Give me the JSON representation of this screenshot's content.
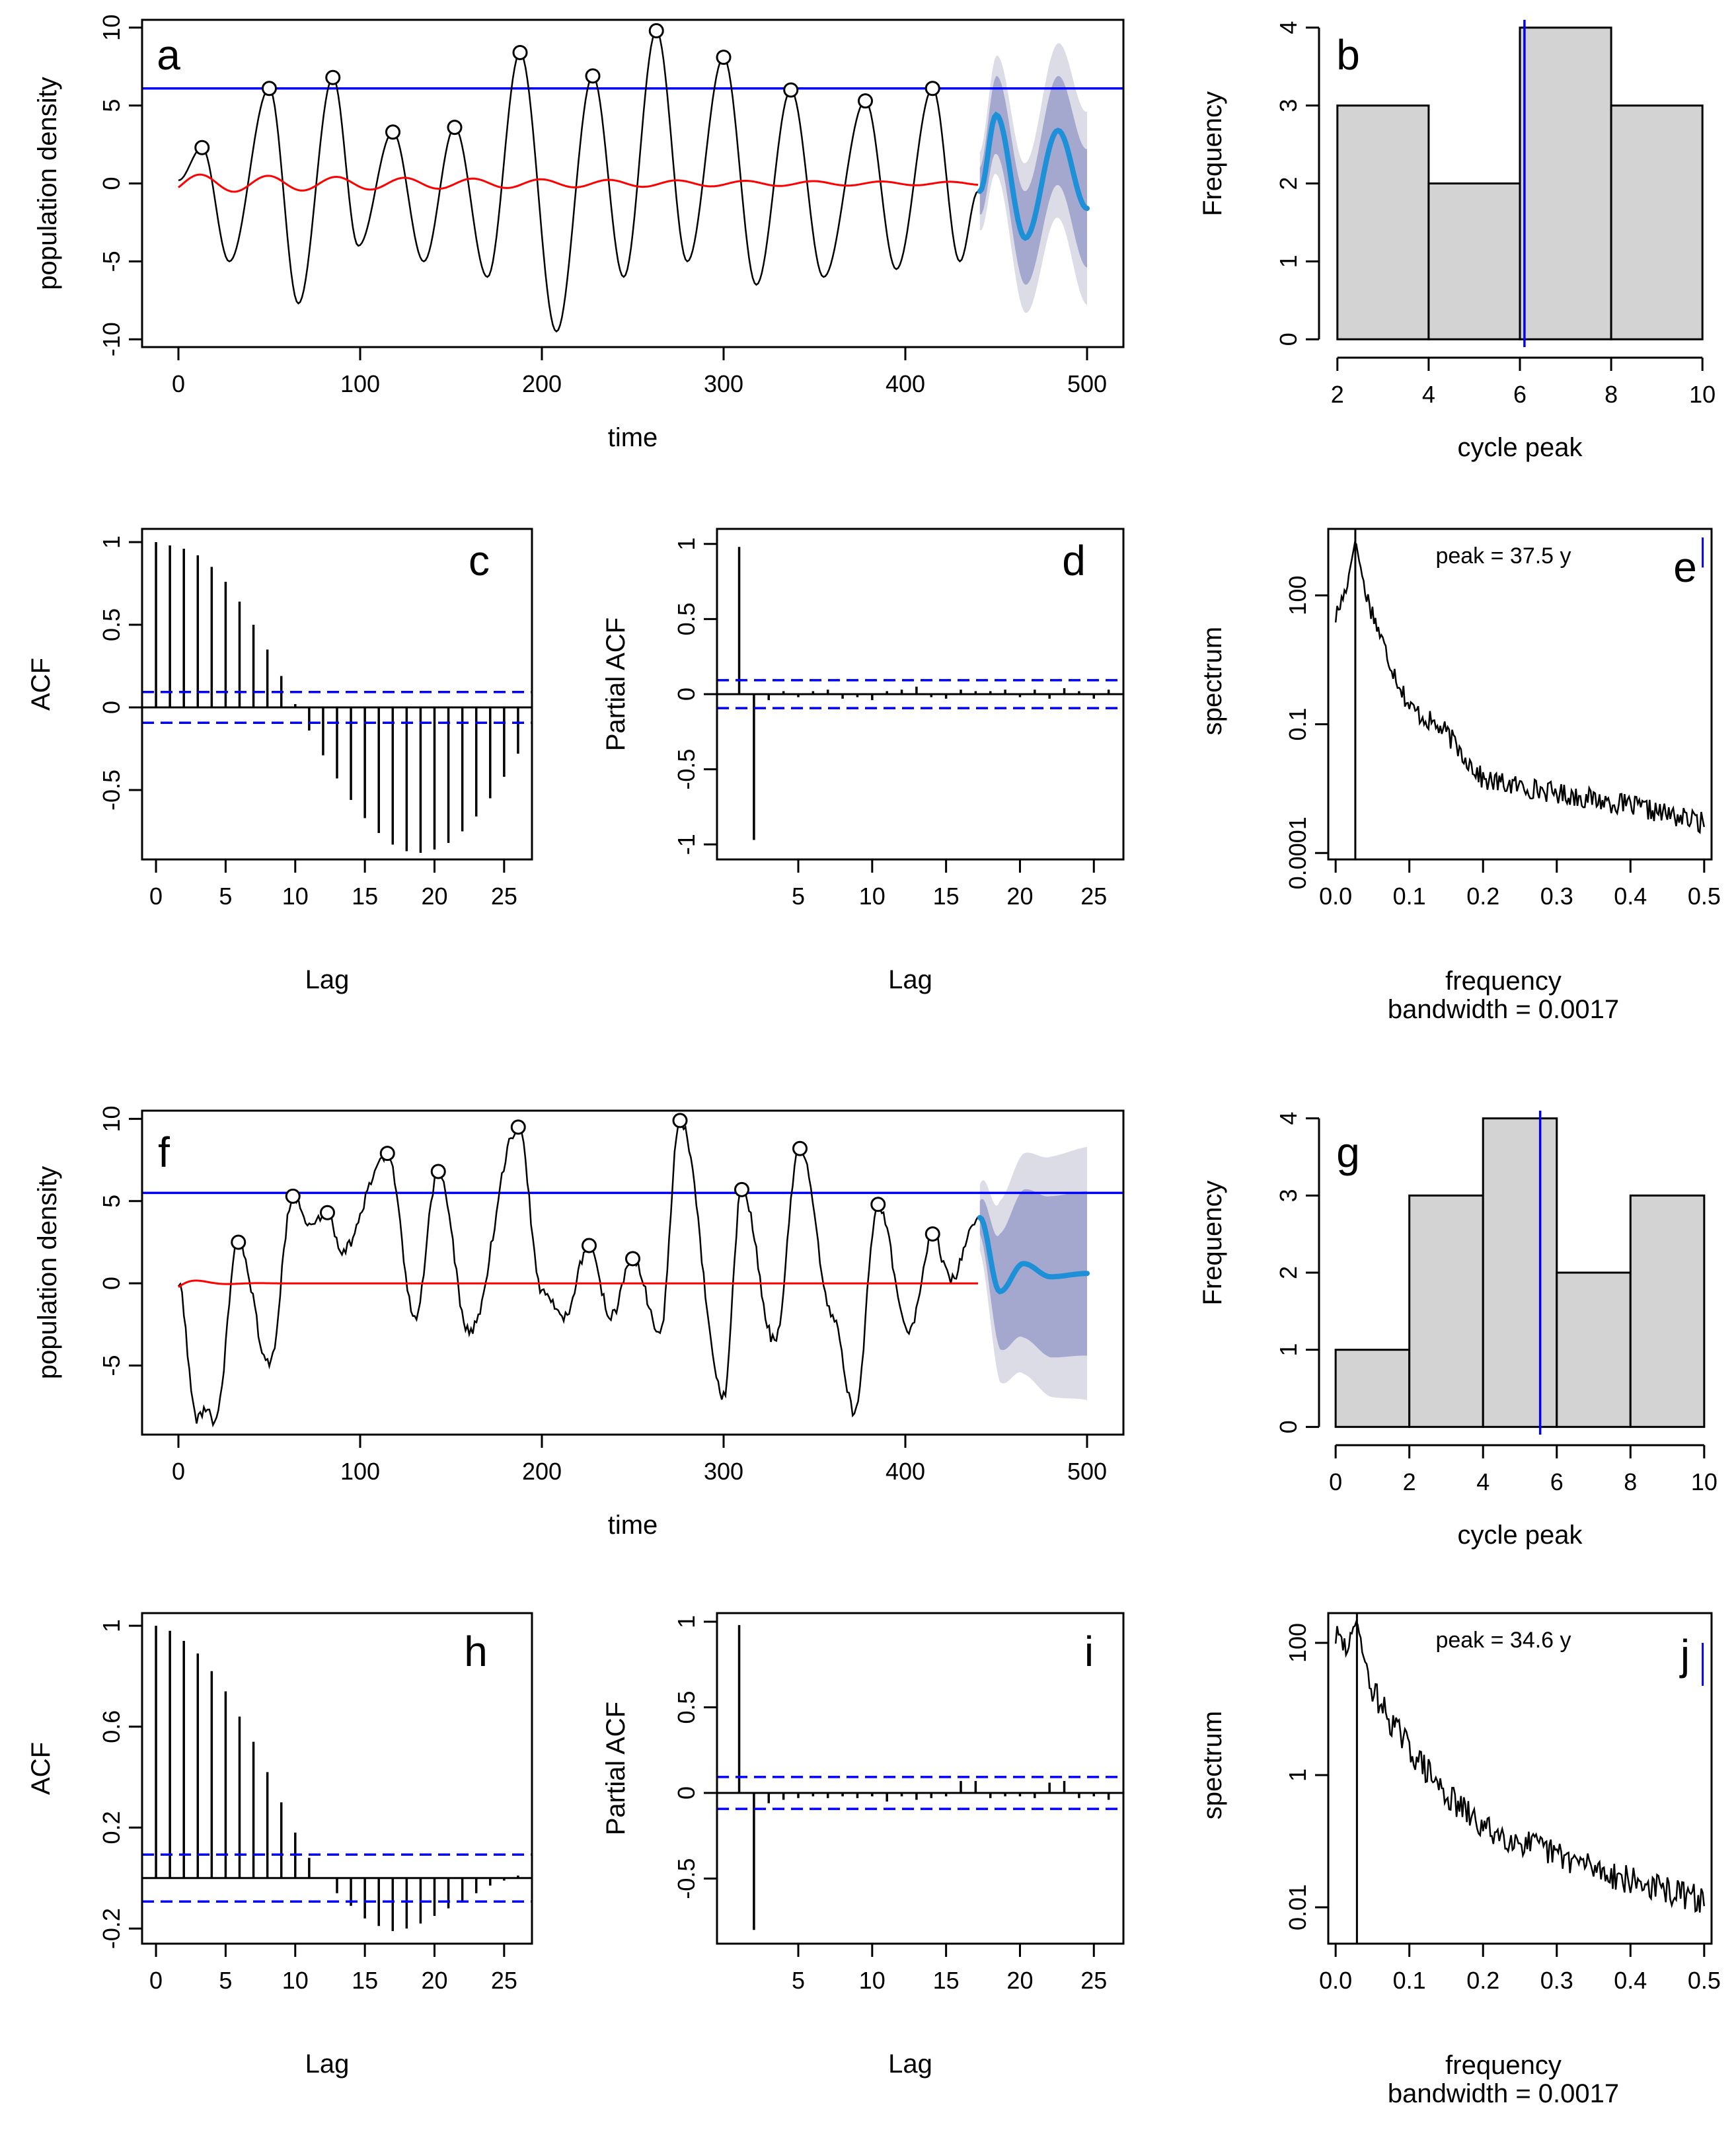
{
  "colors": {
    "series": "#000000",
    "threshold": "#0000ff",
    "trend": "#ff0000",
    "forecast": "#1e90d8",
    "band_outer": "#dcdce6",
    "band_inner": "#a4a8ce",
    "hist_fill": "#d3d3d3",
    "ci": "#0000ff"
  },
  "chart_data": [
    {
      "id": "a",
      "type": "line",
      "panel_label": "a",
      "xlabel": "time",
      "ylabel": "population density",
      "xlim": [
        -20,
        520
      ],
      "ylim": [
        -10.5,
        10.5
      ],
      "xticks": [
        0,
        100,
        200,
        300,
        400,
        500
      ],
      "yticks": [
        -10,
        -5,
        0,
        5,
        10
      ],
      "threshold": 6.1,
      "noise": 0.0,
      "series_extrema": [
        [
          0,
          0.2
        ],
        [
          13,
          2.3
        ],
        [
          28,
          -5.0
        ],
        [
          50,
          6.1
        ],
        [
          66,
          -7.7
        ],
        [
          85,
          6.8
        ],
        [
          99,
          -4.0
        ],
        [
          118,
          3.3
        ],
        [
          135,
          -5.0
        ],
        [
          152,
          3.6
        ],
        [
          170,
          -6.0
        ],
        [
          188,
          8.4
        ],
        [
          208,
          -9.5
        ],
        [
          228,
          6.9
        ],
        [
          245,
          -6.0
        ],
        [
          263,
          9.8
        ],
        [
          280,
          -5.0
        ],
        [
          300,
          8.1
        ],
        [
          318,
          -6.5
        ],
        [
          337,
          6.0
        ],
        [
          355,
          -6.0
        ],
        [
          378,
          5.3
        ],
        [
          395,
          -5.5
        ],
        [
          415,
          6.1
        ],
        [
          430,
          -5.0
        ],
        [
          440,
          -0.5
        ]
      ],
      "peaks": [
        [
          13,
          2.3
        ],
        [
          50,
          6.1
        ],
        [
          85,
          6.8
        ],
        [
          118,
          3.3
        ],
        [
          152,
          3.6
        ],
        [
          188,
          8.4
        ],
        [
          228,
          6.9
        ],
        [
          263,
          9.8
        ],
        [
          300,
          8.1
        ],
        [
          337,
          6.0
        ],
        [
          378,
          5.3
        ],
        [
          415,
          6.1
        ]
      ],
      "trend": {
        "x0": 0,
        "x1": 440,
        "amp": 0.6,
        "decay": 0.004,
        "period": 37.5
      },
      "forecast": {
        "x": [
          441,
          450,
          466,
          484,
          500
        ],
        "y": [
          -0.5,
          4.4,
          -3.5,
          3.4,
          -1.6
        ]
      },
      "band_inner_half": [
        1.5,
        2.5,
        3.0,
        3.5,
        3.8
      ],
      "band_outer_half": [
        2.5,
        3.8,
        4.8,
        5.6,
        6.2
      ]
    },
    {
      "id": "b",
      "type": "bar",
      "panel_label": "b",
      "xlabel": "cycle peak",
      "ylabel": "Frequency",
      "breaks": [
        2,
        4,
        6,
        8,
        10
      ],
      "values": [
        3,
        2,
        4,
        3
      ],
      "xlim": [
        1.8,
        10.2
      ],
      "ylim": [
        -0.1,
        4.1
      ],
      "xticks": [
        2,
        4,
        6,
        8,
        10
      ],
      "yticks": [
        0,
        1,
        2,
        3,
        4
      ],
      "vline": 6.1
    },
    {
      "id": "c",
      "type": "bar",
      "panel_label": "c",
      "xlabel": "Lag",
      "ylabel": "ACF",
      "lags": [
        0,
        1,
        2,
        3,
        4,
        5,
        6,
        7,
        8,
        9,
        10,
        11,
        12,
        13,
        14,
        15,
        16,
        17,
        18,
        19,
        20,
        21,
        22,
        23,
        24,
        25,
        26
      ],
      "values": [
        1.0,
        0.98,
        0.96,
        0.92,
        0.85,
        0.76,
        0.64,
        0.5,
        0.35,
        0.19,
        0.02,
        -0.14,
        -0.29,
        -0.43,
        -0.56,
        -0.67,
        -0.76,
        -0.83,
        -0.87,
        -0.88,
        -0.86,
        -0.82,
        -0.75,
        -0.66,
        -0.55,
        -0.42,
        -0.28
      ],
      "ci": 0.093,
      "xlim": [
        -1,
        27
      ],
      "ylim": [
        -0.92,
        1.08
      ],
      "xticks": [
        0,
        5,
        10,
        15,
        20,
        25
      ],
      "yticks": [
        -0.5,
        0.0,
        0.5,
        1.0
      ]
    },
    {
      "id": "d",
      "type": "bar",
      "panel_label": "d",
      "xlabel": "Lag",
      "ylabel": "Partial ACF",
      "lags": [
        1,
        2,
        3,
        4,
        5,
        6,
        7,
        8,
        9,
        10,
        11,
        12,
        13,
        14,
        15,
        16,
        17,
        18,
        19,
        20,
        21,
        22,
        23,
        24,
        25,
        26
      ],
      "values": [
        0.98,
        -0.97,
        -0.04,
        0.02,
        -0.02,
        0.02,
        0.03,
        -0.03,
        -0.02,
        -0.04,
        0.02,
        0.03,
        0.05,
        -0.02,
        -0.03,
        0.03,
        0.02,
        0.02,
        0.03,
        -0.02,
        0.03,
        -0.03,
        0.04,
        0.02,
        -0.03,
        0.03
      ],
      "ci": 0.093,
      "xlim": [
        -0.5,
        27
      ],
      "ylim": [
        -1.1,
        1.1
      ],
      "xticks": [
        5,
        10,
        15,
        20,
        25
      ],
      "yticks": [
        -1.0,
        -0.5,
        0.0,
        0.5,
        1.0
      ]
    },
    {
      "id": "e",
      "type": "line",
      "panel_label": "e",
      "xlabel": "frequency",
      "xlabel2": "bandwidth = 0.0017",
      "ylabel": "spectrum",
      "log": true,
      "ylim_log10": [
        -4.15,
        3.55
      ],
      "xlim": [
        -0.01,
        0.51
      ],
      "xticks": [
        0.0,
        0.1,
        0.2,
        0.3,
        0.4,
        0.5
      ],
      "xticklabels": [
        "0.0",
        "0.1",
        "0.2",
        "0.3",
        "0.4",
        "0.5"
      ],
      "yticks_log10": [
        2,
        -1,
        -4
      ],
      "yticklabels": [
        "100",
        "0.1",
        "0.0001"
      ],
      "peak_freq": 0.0267,
      "peak_label": "peak = 37.5 y",
      "anchors": [
        [
          0.0,
          1.5
        ],
        [
          0.015,
          2.2
        ],
        [
          0.0267,
          3.3
        ],
        [
          0.04,
          2.1
        ],
        [
          0.07,
          0.6
        ],
        [
          0.1,
          -0.6
        ],
        [
          0.15,
          -1.2
        ],
        [
          0.2,
          -2.3
        ],
        [
          0.3,
          -2.6
        ],
        [
          0.4,
          -2.9
        ],
        [
          0.5,
          -3.3
        ]
      ],
      "noise": 0.25,
      "seed": 17,
      "ci_bar_log10": [
        2.65,
        3.35
      ],
      "ci_bar_x": 0.498
    },
    {
      "id": "f",
      "type": "line",
      "panel_label": "f",
      "xlabel": "time",
      "ylabel": "population density",
      "xlim": [
        -20,
        520
      ],
      "ylim": [
        -9.2,
        10.5
      ],
      "xticks": [
        0,
        100,
        200,
        300,
        400,
        500
      ],
      "yticks": [
        -5,
        0,
        5,
        10
      ],
      "threshold": 5.5,
      "noise": 0.35,
      "series_extrema": [
        [
          0,
          0.0
        ],
        [
          10,
          -8.2
        ],
        [
          15,
          -7.6
        ],
        [
          20,
          -8.6
        ],
        [
          33,
          2.5
        ],
        [
          50,
          -5.0
        ],
        [
          63,
          5.3
        ],
        [
          72,
          3.5
        ],
        [
          82,
          4.3
        ],
        [
          90,
          2.0
        ],
        [
          115,
          7.9
        ],
        [
          130,
          -2.0
        ],
        [
          143,
          6.8
        ],
        [
          160,
          -3.0
        ],
        [
          187,
          9.5
        ],
        [
          200,
          -0.5
        ],
        [
          212,
          -2.0
        ],
        [
          226,
          2.3
        ],
        [
          238,
          -2.0
        ],
        [
          250,
          1.5
        ],
        [
          265,
          -3.0
        ],
        [
          276,
          9.9
        ],
        [
          300,
          -6.9
        ],
        [
          310,
          5.7
        ],
        [
          328,
          -3.5
        ],
        [
          342,
          8.2
        ],
        [
          360,
          -2.0
        ],
        [
          372,
          -7.8
        ],
        [
          385,
          4.8
        ],
        [
          402,
          -3.0
        ],
        [
          415,
          3.0
        ],
        [
          425,
          0.2
        ],
        [
          440,
          4.0
        ]
      ],
      "peaks": [
        [
          33,
          2.5
        ],
        [
          63,
          5.3
        ],
        [
          82,
          4.3
        ],
        [
          115,
          7.9
        ],
        [
          143,
          6.8
        ],
        [
          187,
          9.5
        ],
        [
          226,
          2.3
        ],
        [
          250,
          1.5
        ],
        [
          276,
          9.9
        ],
        [
          310,
          5.7
        ],
        [
          342,
          8.2
        ],
        [
          385,
          4.8
        ],
        [
          415,
          3.0
        ]
      ],
      "trend": {
        "x0": 0,
        "x1": 440,
        "amp": 0.4,
        "decay": 0.08,
        "period": 34.6
      },
      "forecast": {
        "x": [
          441,
          452,
          465,
          480,
          500
        ],
        "y": [
          4.0,
          -0.5,
          1.2,
          0.4,
          0.6
        ]
      },
      "band_inner_half": [
        1.0,
        3.5,
        4.5,
        4.9,
        5.0
      ],
      "band_outer_half": [
        2.0,
        5.5,
        6.7,
        7.3,
        7.7
      ]
    },
    {
      "id": "g",
      "type": "bar",
      "panel_label": "g",
      "xlabel": "cycle peak",
      "ylabel": "Frequency",
      "breaks": [
        0,
        2,
        4,
        6,
        8,
        10
      ],
      "values": [
        1,
        3,
        4,
        2,
        3
      ],
      "xlim": [
        -0.2,
        10.2
      ],
      "ylim": [
        -0.1,
        4.1
      ],
      "xticks": [
        0,
        2,
        4,
        6,
        8,
        10
      ],
      "yticks": [
        0,
        1,
        2,
        3,
        4
      ],
      "vline": 5.55
    },
    {
      "id": "h",
      "type": "bar",
      "panel_label": "h",
      "xlabel": "Lag",
      "ylabel": "ACF",
      "lags": [
        0,
        1,
        2,
        3,
        4,
        5,
        6,
        7,
        8,
        9,
        10,
        11,
        12,
        13,
        14,
        15,
        16,
        17,
        18,
        19,
        20,
        21,
        22,
        23,
        24,
        25,
        26
      ],
      "values": [
        1.0,
        0.98,
        0.94,
        0.89,
        0.82,
        0.74,
        0.64,
        0.54,
        0.42,
        0.3,
        0.18,
        0.08,
        0.0,
        -0.06,
        -0.11,
        -0.16,
        -0.19,
        -0.21,
        -0.2,
        -0.18,
        -0.15,
        -0.12,
        -0.09,
        -0.06,
        -0.03,
        -0.01,
        0.01
      ],
      "ci": 0.093,
      "xlim": [
        -1,
        27
      ],
      "ylim": [
        -0.26,
        1.05
      ],
      "xticks": [
        0,
        5,
        10,
        15,
        20,
        25
      ],
      "yticks": [
        -0.2,
        0.2,
        0.6,
        1.0
      ]
    },
    {
      "id": "i",
      "type": "bar",
      "panel_label": "i",
      "xlabel": "Lag",
      "ylabel": "Partial ACF",
      "lags": [
        1,
        2,
        3,
        4,
        5,
        6,
        7,
        8,
        9,
        10,
        11,
        12,
        13,
        14,
        15,
        16,
        17,
        18,
        19,
        20,
        21,
        22,
        23,
        24,
        25,
        26
      ],
      "values": [
        0.98,
        -0.8,
        -0.06,
        -0.04,
        -0.03,
        -0.02,
        -0.03,
        -0.02,
        -0.03,
        -0.02,
        -0.05,
        -0.02,
        -0.04,
        -0.03,
        -0.02,
        0.07,
        0.07,
        -0.03,
        -0.02,
        -0.02,
        -0.03,
        0.06,
        0.07,
        -0.03,
        -0.02,
        -0.04
      ],
      "ci": 0.093,
      "xlim": [
        -0.5,
        27
      ],
      "ylim": [
        -0.88,
        1.05
      ],
      "xticks": [
        5,
        10,
        15,
        20,
        25
      ],
      "yticks": [
        -0.5,
        0.0,
        0.5,
        1.0
      ]
    },
    {
      "id": "j",
      "type": "line",
      "panel_label": "j",
      "xlabel": "frequency",
      "xlabel2": "bandwidth = 0.0017",
      "ylabel": "spectrum",
      "log": true,
      "ylim_log10": [
        -2.55,
        2.45
      ],
      "xlim": [
        -0.01,
        0.51
      ],
      "xticks": [
        0.0,
        0.1,
        0.2,
        0.3,
        0.4,
        0.5
      ],
      "xticklabels": [
        "0.0",
        "0.1",
        "0.2",
        "0.3",
        "0.4",
        "0.5"
      ],
      "yticks_log10": [
        2,
        0,
        -2
      ],
      "yticklabels": [
        "100",
        "1",
        "0.01"
      ],
      "peak_freq": 0.0289,
      "peak_label": "peak = 34.6 y",
      "anchors": [
        [
          0.0,
          2.1
        ],
        [
          0.015,
          1.9
        ],
        [
          0.0289,
          2.35
        ],
        [
          0.045,
          1.4
        ],
        [
          0.07,
          0.9
        ],
        [
          0.1,
          0.4
        ],
        [
          0.15,
          -0.3
        ],
        [
          0.2,
          -0.8
        ],
        [
          0.3,
          -1.2
        ],
        [
          0.4,
          -1.6
        ],
        [
          0.5,
          -1.9
        ]
      ],
      "noise": 0.22,
      "seed": 29,
      "ci_bar_log10": [
        1.35,
        2.0
      ],
      "ci_bar_x": 0.498
    }
  ]
}
